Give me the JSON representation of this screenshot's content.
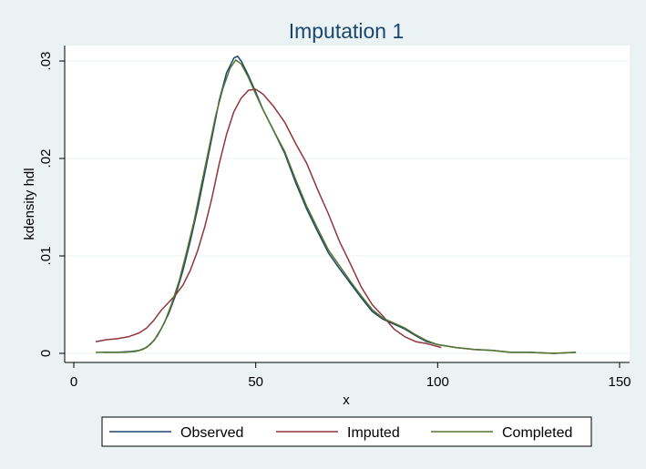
{
  "chart_data": {
    "type": "line",
    "title": "Imputation 1",
    "xlabel": "x",
    "ylabel": "kdensity hdl",
    "xlim": [
      0,
      150
    ],
    "ylim": [
      0,
      0.03
    ],
    "xticks": [
      0,
      50,
      100,
      150
    ],
    "xtick_labels": [
      "0",
      "50",
      "100",
      "150"
    ],
    "yticks": [
      0,
      0.01,
      0.02,
      0.03
    ],
    "ytick_labels": [
      "0",
      ".01",
      ".02",
      ".03"
    ],
    "grid": true,
    "legend_position": "bottom",
    "series": [
      {
        "name": "Observed",
        "color": "#1a476f",
        "points": [
          [
            8,
            0.0001
          ],
          [
            12,
            0.0001
          ],
          [
            16,
            0.0002
          ],
          [
            18,
            0.0003
          ],
          [
            20,
            0.0006
          ],
          [
            22,
            0.0013
          ],
          [
            24,
            0.0025
          ],
          [
            26,
            0.004
          ],
          [
            28,
            0.006
          ],
          [
            30,
            0.0085
          ],
          [
            32,
            0.0115
          ],
          [
            34,
            0.0148
          ],
          [
            36,
            0.0185
          ],
          [
            38,
            0.0222
          ],
          [
            40,
            0.026
          ],
          [
            42,
            0.0288
          ],
          [
            44,
            0.0303
          ],
          [
            45,
            0.0305
          ],
          [
            46,
            0.03
          ],
          [
            48,
            0.0285
          ],
          [
            50,
            0.0268
          ],
          [
            52,
            0.025
          ],
          [
            55,
            0.0228
          ],
          [
            58,
            0.0205
          ],
          [
            61,
            0.0175
          ],
          [
            64,
            0.0148
          ],
          [
            67,
            0.0125
          ],
          [
            70,
            0.0103
          ],
          [
            73,
            0.0087
          ],
          [
            76,
            0.0072
          ],
          [
            79,
            0.0057
          ],
          [
            82,
            0.0043
          ],
          [
            85,
            0.0035
          ],
          [
            88,
            0.003
          ],
          [
            91,
            0.0025
          ],
          [
            94,
            0.0018
          ],
          [
            97,
            0.0012
          ],
          [
            100,
            0.0009
          ],
          [
            105,
            0.0006
          ],
          [
            110,
            0.0004
          ],
          [
            115,
            0.0003
          ],
          [
            120,
            0.0001
          ],
          [
            125,
            0.0001
          ],
          [
            132,
            0.0
          ],
          [
            138,
            0.0001
          ]
        ]
      },
      {
        "name": "Imputed",
        "color": "#90353b",
        "points": [
          [
            6,
            0.0012
          ],
          [
            9,
            0.0014
          ],
          [
            12,
            0.0015
          ],
          [
            15,
            0.0017
          ],
          [
            18,
            0.0021
          ],
          [
            20,
            0.0026
          ],
          [
            22,
            0.0034
          ],
          [
            24,
            0.0044
          ],
          [
            26,
            0.0052
          ],
          [
            28,
            0.006
          ],
          [
            30,
            0.007
          ],
          [
            32,
            0.0085
          ],
          [
            34,
            0.0105
          ],
          [
            36,
            0.013
          ],
          [
            38,
            0.016
          ],
          [
            40,
            0.0195
          ],
          [
            42,
            0.0225
          ],
          [
            44,
            0.0248
          ],
          [
            46,
            0.0262
          ],
          [
            48,
            0.027
          ],
          [
            50,
            0.0271
          ],
          [
            52,
            0.0266
          ],
          [
            55,
            0.0253
          ],
          [
            58,
            0.0237
          ],
          [
            61,
            0.0215
          ],
          [
            64,
            0.0195
          ],
          [
            67,
            0.0168
          ],
          [
            70,
            0.0143
          ],
          [
            73,
            0.0115
          ],
          [
            76,
            0.0092
          ],
          [
            79,
            0.0068
          ],
          [
            82,
            0.005
          ],
          [
            85,
            0.0038
          ],
          [
            88,
            0.0025
          ],
          [
            91,
            0.0017
          ],
          [
            94,
            0.0012
          ],
          [
            97,
            0.001
          ],
          [
            101,
            0.0006
          ]
        ]
      },
      {
        "name": "Completed",
        "color": "#55752f",
        "points": [
          [
            6,
            0.0001
          ],
          [
            10,
            0.0001
          ],
          [
            14,
            0.0001
          ],
          [
            17,
            0.0002
          ],
          [
            19,
            0.0004
          ],
          [
            21,
            0.0009
          ],
          [
            23,
            0.0018
          ],
          [
            25,
            0.0032
          ],
          [
            27,
            0.0052
          ],
          [
            29,
            0.0075
          ],
          [
            31,
            0.0104
          ],
          [
            33,
            0.0135
          ],
          [
            35,
            0.0172
          ],
          [
            37,
            0.0208
          ],
          [
            39,
            0.0244
          ],
          [
            41,
            0.0272
          ],
          [
            43,
            0.0293
          ],
          [
            44.5,
            0.0301
          ],
          [
            46,
            0.0297
          ],
          [
            48,
            0.0283
          ],
          [
            50,
            0.0266
          ],
          [
            52,
            0.025
          ],
          [
            55,
            0.0228
          ],
          [
            58,
            0.0207
          ],
          [
            61,
            0.0178
          ],
          [
            64,
            0.0151
          ],
          [
            67,
            0.0128
          ],
          [
            70,
            0.0106
          ],
          [
            73,
            0.009
          ],
          [
            76,
            0.0074
          ],
          [
            79,
            0.0059
          ],
          [
            82,
            0.0045
          ],
          [
            85,
            0.0036
          ],
          [
            88,
            0.0031
          ],
          [
            91,
            0.0026
          ],
          [
            94,
            0.0019
          ],
          [
            97,
            0.0013
          ],
          [
            100,
            0.0009
          ],
          [
            105,
            0.0006
          ],
          [
            110,
            0.0004
          ],
          [
            115,
            0.0003
          ],
          [
            120,
            0.0001
          ],
          [
            125,
            0.0001
          ],
          [
            132,
            0.0
          ],
          [
            138,
            0.0001
          ]
        ]
      }
    ]
  }
}
